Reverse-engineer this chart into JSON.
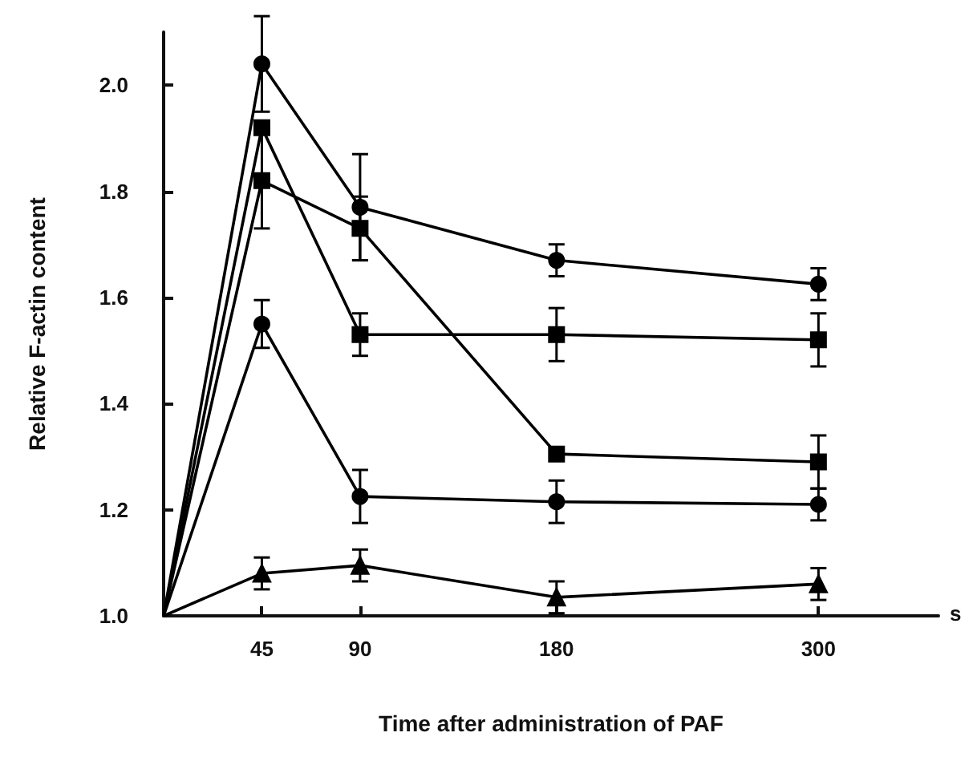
{
  "chart_data": {
    "type": "line",
    "xlabel": "Time after administration of PAF",
    "ylabel": "Relative F-actin content",
    "annotations": [
      "s"
    ],
    "x": [
      0,
      45,
      90,
      180,
      300
    ],
    "xlim": [
      0,
      355
    ],
    "xticks": [
      45,
      90,
      180,
      300
    ],
    "ylim": [
      1.0,
      2.1
    ],
    "yticks": [
      {
        "value": 1.0,
        "label": "1.0"
      },
      1.2,
      1.4,
      1.6,
      1.8,
      {
        "value": 2.0,
        "label": "2.0"
      }
    ],
    "grid": false,
    "line_style": "solid",
    "series": [
      {
        "color": "#000000",
        "marker": "circle",
        "values": [
          1.0,
          2.04,
          1.77,
          1.67,
          1.625
        ],
        "errors": [
          null,
          0.09,
          0.1,
          0.03,
          0.03
        ]
      },
      {
        "color": "#000000",
        "marker": "square",
        "values": [
          1.0,
          1.92,
          1.53,
          1.53,
          1.52
        ],
        "errors": [
          null,
          null,
          0.04,
          0.05,
          0.05
        ]
      },
      {
        "color": "#000000",
        "marker": "square",
        "values": [
          1.0,
          1.82,
          1.73,
          1.305,
          1.29
        ],
        "errors": [
          null,
          0.09,
          0.06,
          null,
          0.05
        ]
      },
      {
        "color": "#000000",
        "marker": "circle",
        "values": [
          1.0,
          1.55,
          1.225,
          1.215,
          1.21
        ],
        "errors": [
          null,
          0.045,
          0.05,
          0.04,
          0.03
        ]
      },
      {
        "color": "#000000",
        "marker": "triangle",
        "values": [
          1.0,
          1.08,
          1.095,
          1.035,
          1.06
        ],
        "errors": [
          null,
          0.03,
          0.03,
          0.03,
          0.03
        ]
      }
    ]
  }
}
